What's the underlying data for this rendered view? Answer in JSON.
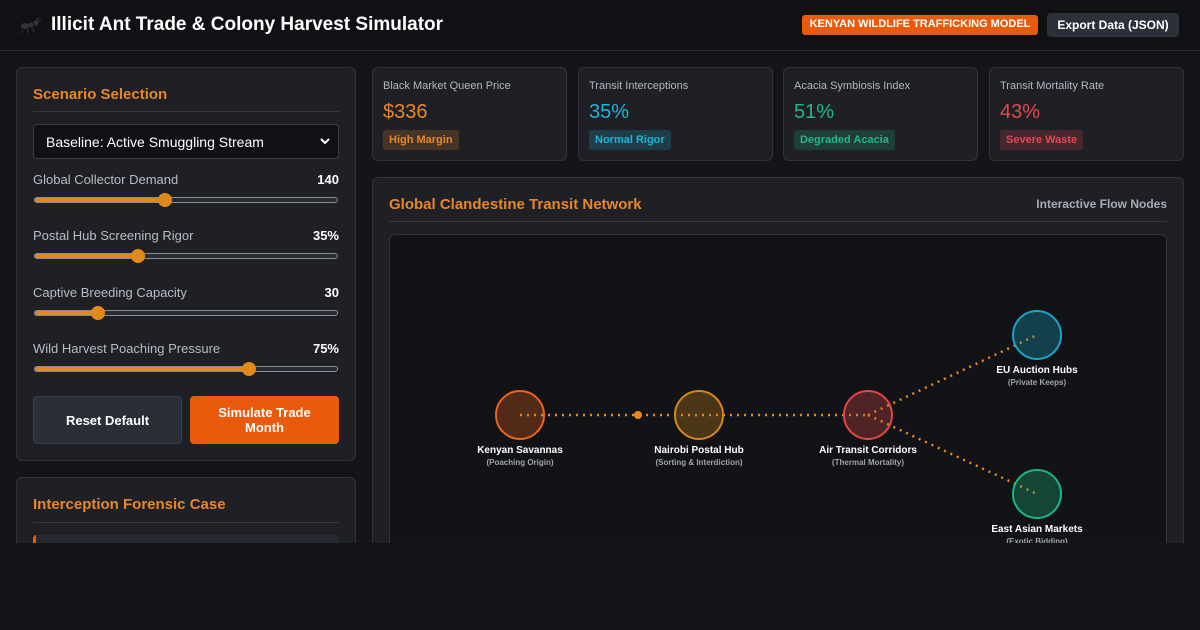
{
  "header": {
    "title": "Illicit Ant Trade & Colony Harvest Simulator",
    "badge": "KENYAN WILDLIFE TRAFFICKING MODEL",
    "export_button": "Export Data (JSON)"
  },
  "scenario_panel": {
    "title": "Scenario Selection",
    "select": "Baseline: Active Smuggling Stream",
    "sliders": [
      {
        "label": "Global Collector Demand",
        "value": "140"
      },
      {
        "label": "Postal Hub Screening Rigor",
        "value": "35%"
      },
      {
        "label": "Captive Breeding Capacity",
        "value": "30"
      },
      {
        "label": "Wild Harvest Poaching Pressure",
        "value": "75%"
      }
    ],
    "buttons": [
      "Reset Default",
      "Simulate Trade Month"
    ]
  },
  "forensic_panel": {
    "title": "Interception Forensic Case"
  },
  "metrics": [
    {
      "label": "Black Market Queen Price",
      "value": "$336",
      "tag": "High Margin",
      "color": "#e8862a"
    },
    {
      "label": "Transit Interceptions",
      "value": "35%",
      "tag": "Normal Rigor",
      "color": "#1fb5d6"
    },
    {
      "label": "Acacia Symbiosis Index",
      "value": "51%",
      "tag": "Degraded Acacia",
      "color": "#22b887"
    },
    {
      "label": "Transit Mortality Rate",
      "value": "43%",
      "tag": "Severe Waste",
      "color": "#e5474f"
    }
  ],
  "network": {
    "title": "Global Clandestine Transit Network",
    "subtitle": "Interactive Flow Nodes",
    "nodes": [
      {
        "label": "Kenyan Savannas",
        "sub": "(Poaching Origin)",
        "color": "#e8651a"
      },
      {
        "label": "Nairobi Postal Hub",
        "sub": "(Sorting & Interdiction)",
        "color": "#d4881a"
      },
      {
        "label": "Air Transit Corridors",
        "sub": "(Thermal Mortality)",
        "color": "#e04848"
      },
      {
        "label": "EU Auction Hubs",
        "sub": "(Private Keeps)",
        "color": "#1aa5c8"
      },
      {
        "label": "East Asian Markets",
        "sub": "(Exotic Bidding)",
        "color": "#1ab882"
      }
    ]
  }
}
